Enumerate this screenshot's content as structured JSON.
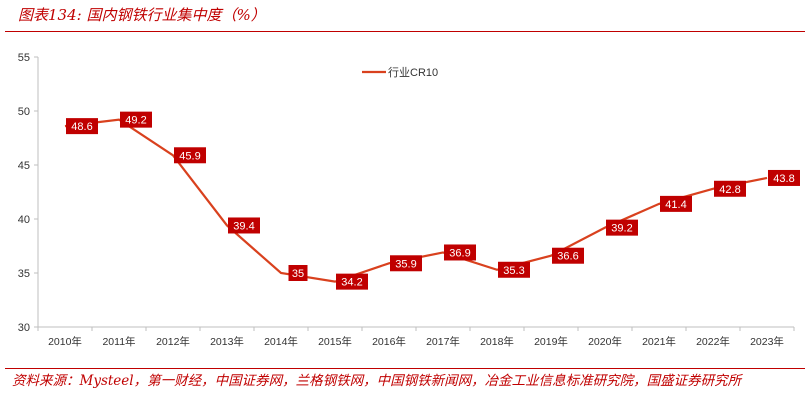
{
  "title": "图表134:  国内钢铁行业集中度（%）",
  "source": "资料来源：Mysteel，第一财经，中国证券网，兰格钢铁网，中国钢铁新闻网，冶金工业信息标准研究院，国盛证券研究所",
  "chart_data": {
    "type": "line",
    "title": "",
    "xlabel": "",
    "ylabel": "",
    "categories": [
      "2010年",
      "2011年",
      "2012年",
      "2013年",
      "2014年",
      "2015年",
      "2016年",
      "2017年",
      "2018年",
      "2019年",
      "2020年",
      "2021年",
      "2022年",
      "2023年"
    ],
    "series": [
      {
        "name": "行业CR10",
        "values": [
          48.6,
          49.2,
          45.9,
          39.4,
          35,
          34.2,
          35.9,
          36.9,
          35.3,
          36.6,
          39.2,
          41.4,
          42.8,
          43.8
        ],
        "color": "#d9411e"
      }
    ],
    "ylim": [
      30,
      55
    ],
    "yticks": [
      30,
      35,
      40,
      45,
      50,
      55
    ],
    "grid": false,
    "legend": "top-center",
    "data_labels": true,
    "label_color": "#c00000"
  }
}
